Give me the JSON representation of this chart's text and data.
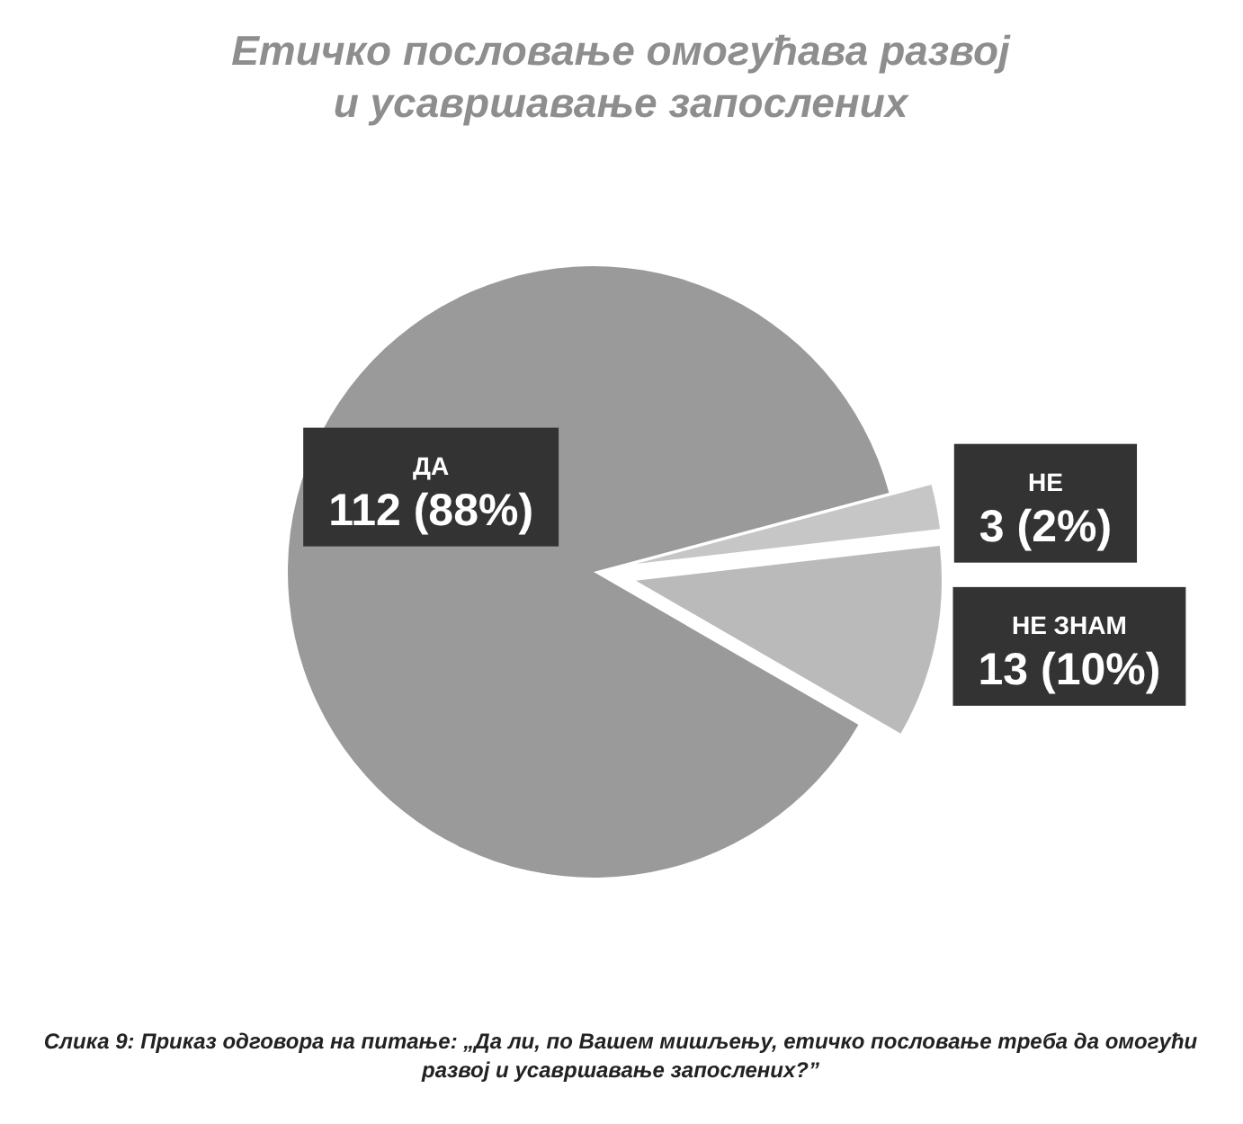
{
  "chart_data": {
    "type": "pie",
    "title": "Етичко пословање омогућава развој и усавршавање запослених",
    "categories": [
      "ДА",
      "НЕ",
      "НЕ ЗНАМ"
    ],
    "values": [
      112,
      3,
      13
    ],
    "value_labels": [
      "112 (88%)",
      "3 (2%)",
      "13 (10%)"
    ],
    "colors": [
      "#9a9a9a",
      "#c6c6c6",
      "#b9bab9"
    ],
    "annotations": [
      "Слика 9: Приказ одговора на питање: „Да ли, по Вашем мишљењу, етичко пословање треба да омогући развој и усавршавање запослених?”"
    ]
  }
}
